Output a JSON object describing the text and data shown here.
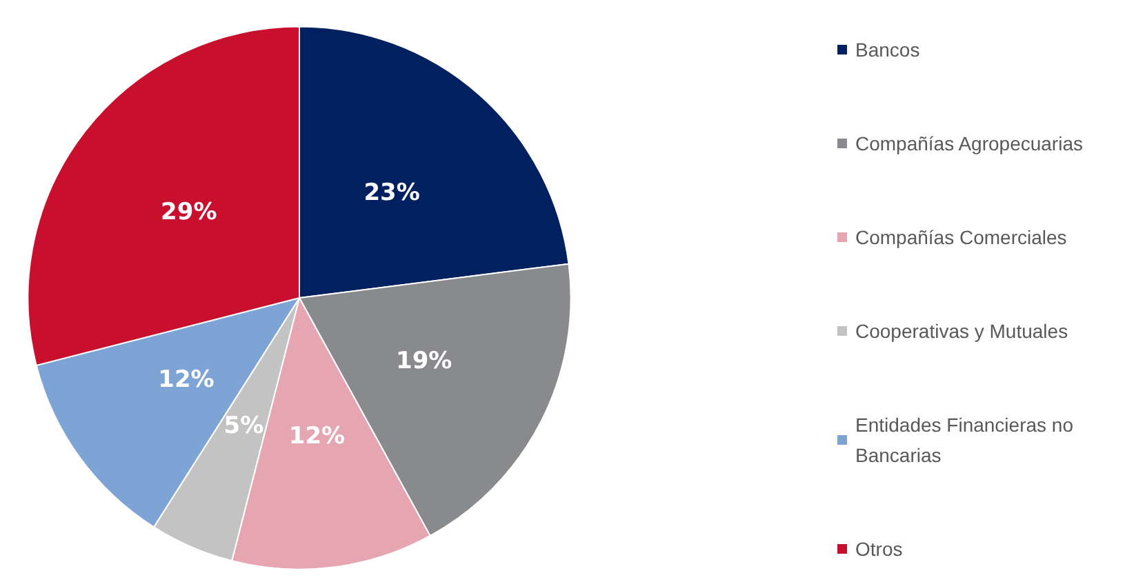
{
  "chart_data": {
    "type": "pie",
    "categories": [
      "Bancos",
      "Compañías Agropecuarias",
      "Compañías Comerciales",
      "Cooperativas y Mutuales",
      "Entidades Financieras no Bancarias",
      "Otros"
    ],
    "values": [
      23,
      19,
      12,
      5,
      12,
      29
    ],
    "colors": [
      "#002060",
      "#898a8e",
      "#e5a6b1",
      "#c3c3c3",
      "#7ea4d6",
      "#c8102e"
    ],
    "value_labels": [
      "23%",
      "19%",
      "12%",
      "5%",
      "12%",
      "29%"
    ],
    "legend": "right"
  }
}
